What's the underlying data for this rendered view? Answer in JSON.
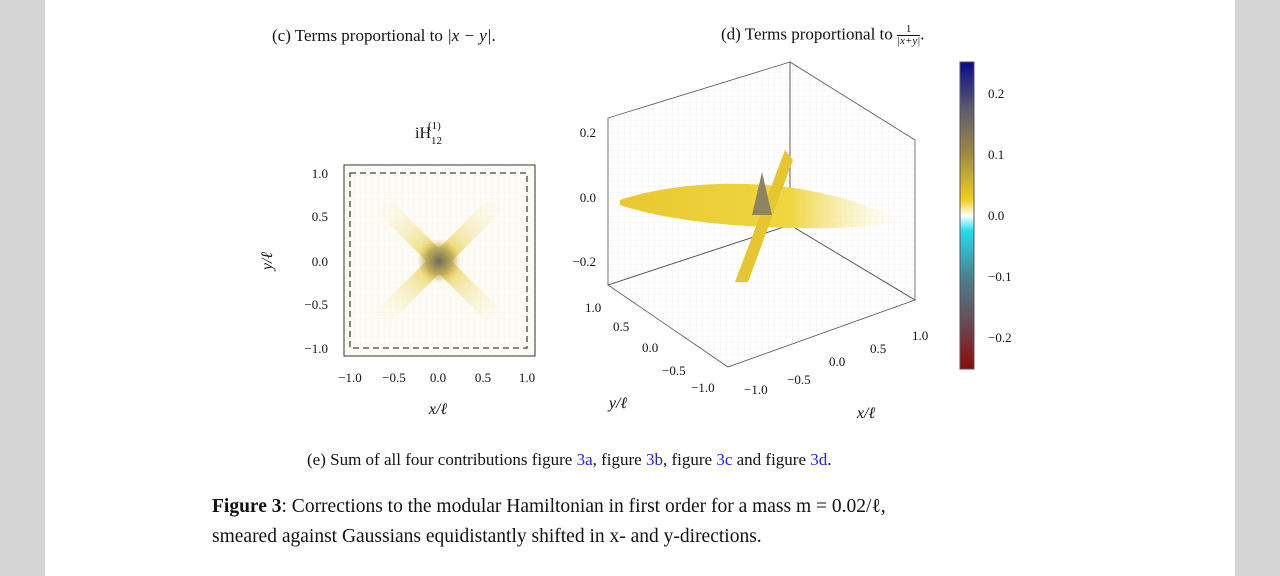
{
  "captions": {
    "c_prefix": "(c) Terms proportional to ",
    "c_math": "|x − y|",
    "c_suffix": ".",
    "d_prefix": "(d) Terms proportional to ",
    "d_num": "1",
    "d_den": "|x+y|",
    "d_suffix": ".",
    "e_prefix": "(e) Sum of all four contributions figure ",
    "e_ref_a": "3a",
    "e_sep1": ", figure ",
    "e_ref_b": "3b",
    "e_sep2": ", figure ",
    "e_ref_c": "3c",
    "e_sep3": " and figure ",
    "e_ref_d": "3d",
    "e_suffix": "."
  },
  "figure_caption": {
    "label": "Figure 3",
    "line1": ": Corrections to the modular Hamiltonian in first order for a mass m = 0.02/ℓ,",
    "line2": "smeared against Gaussians equidistantly shifted in x- and y-directions."
  },
  "chart_data": [
    {
      "type": "heatmap",
      "title": "iH12(1)",
      "title_main": "iH",
      "title_sub": "12",
      "title_sup": "(1)",
      "xlabel": "x/ℓ",
      "ylabel": "y/ℓ",
      "xlim": [
        -1.2,
        1.2
      ],
      "ylim": [
        -1.2,
        1.2
      ],
      "xticks": [
        "−1.0",
        "−0.5",
        "0.0",
        "0.5",
        "1.0"
      ],
      "yticks": [
        "1.0",
        "0.5",
        "0.0",
        "−0.5",
        "−1.0"
      ],
      "dashed_box": [
        -1,
        1
      ],
      "pattern": "X-shaped ridges along diagonals x=y and x=−y, peak at origin",
      "colors": {
        "low": "#ffffff",
        "mid": "#e8c832",
        "high": "#6a6a6a"
      }
    },
    {
      "type": "surface3d",
      "xlabel": "x/ℓ",
      "ylabel": "y/ℓ",
      "zticks": [
        "0.2",
        "0.0",
        "−0.2"
      ],
      "xticks": [
        "−1.0",
        "−0.5",
        "0.0",
        "0.5",
        "1.0"
      ],
      "yticks": [
        "1.0",
        "0.5",
        "0.0",
        "−0.5",
        "−1.0"
      ],
      "colorbar": {
        "ticks": [
          "0.2",
          "0.1",
          "0.0",
          "−0.1",
          "−0.2"
        ],
        "range": [
          -0.25,
          0.25
        ],
        "colors": [
          "#8b0a0a",
          "#6a6a72",
          "#3a97a8",
          "#22dcef",
          "#ffffff",
          "#f0d020",
          "#a08a40",
          "#5a5a70",
          "#0a0a8a"
        ]
      }
    }
  ]
}
